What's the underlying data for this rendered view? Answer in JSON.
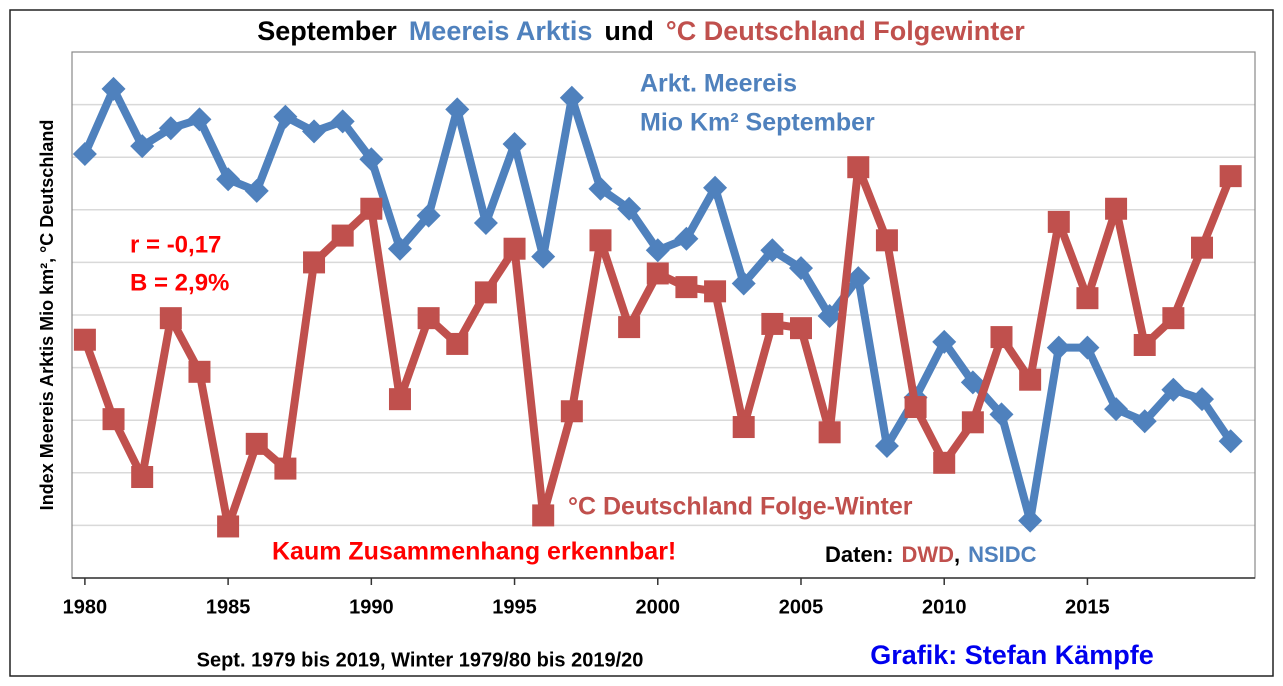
{
  "chart_data": {
    "type": "line",
    "title_parts": [
      {
        "text": "September",
        "color": "#000000"
      },
      {
        "text": "Meereis Arktis",
        "color": "#4f81bd"
      },
      {
        "text": "und",
        "color": "#000000"
      },
      {
        "text": "°C Deutschland Folgewinter",
        "color": "#c0504d"
      }
    ],
    "y_label": "Index Meereis Arktis Mio km², °C Deutschland",
    "x_label": "Sept. 1979 bis 2019, Winter 1979/80 bis 2019/20",
    "credit": "Grafik: Stefan Kämpfe",
    "annotations": [
      {
        "text": "Mio Km² September",
        "color": "#4f81bd"
      },
      {
        "text": "r = -0,17",
        "color": "#ff0000"
      },
      {
        "text": "B = 2,9%",
        "color": "#ff0000"
      },
      {
        "text": "Kaum Zusammenhang erkennbar!",
        "color": "#ff0000"
      }
    ],
    "source_parts": [
      {
        "text": "Daten:",
        "color": "#000000"
      },
      {
        "text": "DWD",
        "color": "#c0504d"
      },
      {
        "text": ",",
        "color": "#000000"
      },
      {
        "text": "NSIDC",
        "color": "#4f81bd"
      }
    ],
    "x": [
      1980,
      1981,
      1982,
      1983,
      1984,
      1985,
      1986,
      1987,
      1988,
      1989,
      1990,
      1991,
      1992,
      1993,
      1994,
      1995,
      1996,
      1997,
      1998,
      1999,
      2000,
      2001,
      2002,
      2003,
      2004,
      2005,
      2006,
      2007,
      2008,
      2009,
      2010,
      2011,
      2012,
      2013,
      2014,
      2015,
      2016,
      2017,
      2018,
      2019,
      2020
    ],
    "series": [
      {
        "name": "Arkt. Meereis",
        "color": "#4f81bd",
        "marker": "diamond",
        "values": [
          8.06,
          9.3,
          8.21,
          8.55,
          8.72,
          7.58,
          7.36,
          8.77,
          8.49,
          8.68,
          7.96,
          6.26,
          6.89,
          8.91,
          6.75,
          8.25,
          6.11,
          9.13,
          7.4,
          7.02,
          6.23,
          6.45,
          7.42,
          5.6,
          6.23,
          5.89,
          4.98,
          5.7,
          2.51,
          3.43,
          4.49,
          3.72,
          3.11,
          1.09,
          4.38,
          4.38,
          3.21,
          2.98,
          3.58,
          3.4,
          2.6
        ]
      },
      {
        "name": "°C Deutschland Folge-Winter",
        "color": "#c0504d",
        "marker": "square",
        "values": [
          4.53,
          3.02,
          1.92,
          4.94,
          3.92,
          0.98,
          2.55,
          2.08,
          6.0,
          6.51,
          7.02,
          3.4,
          4.94,
          4.45,
          5.43,
          6.26,
          1.19,
          3.17,
          6.42,
          4.77,
          5.79,
          5.53,
          5.45,
          2.87,
          4.83,
          4.75,
          2.77,
          7.81,
          6.42,
          3.25,
          2.19,
          2.96,
          4.58,
          3.77,
          6.77,
          5.32,
          7.02,
          4.43,
          4.94,
          6.28,
          7.64
        ]
      }
    ],
    "xlim": [
      1979.55,
      2020.85
    ],
    "xticks": [
      1980,
      1985,
      1990,
      1995,
      2000,
      2005,
      2010,
      2015
    ],
    "ylim": [
      0,
      10
    ],
    "yticks": [
      1,
      2,
      3,
      4,
      5,
      6,
      7,
      8,
      9
    ],
    "grid": true
  }
}
